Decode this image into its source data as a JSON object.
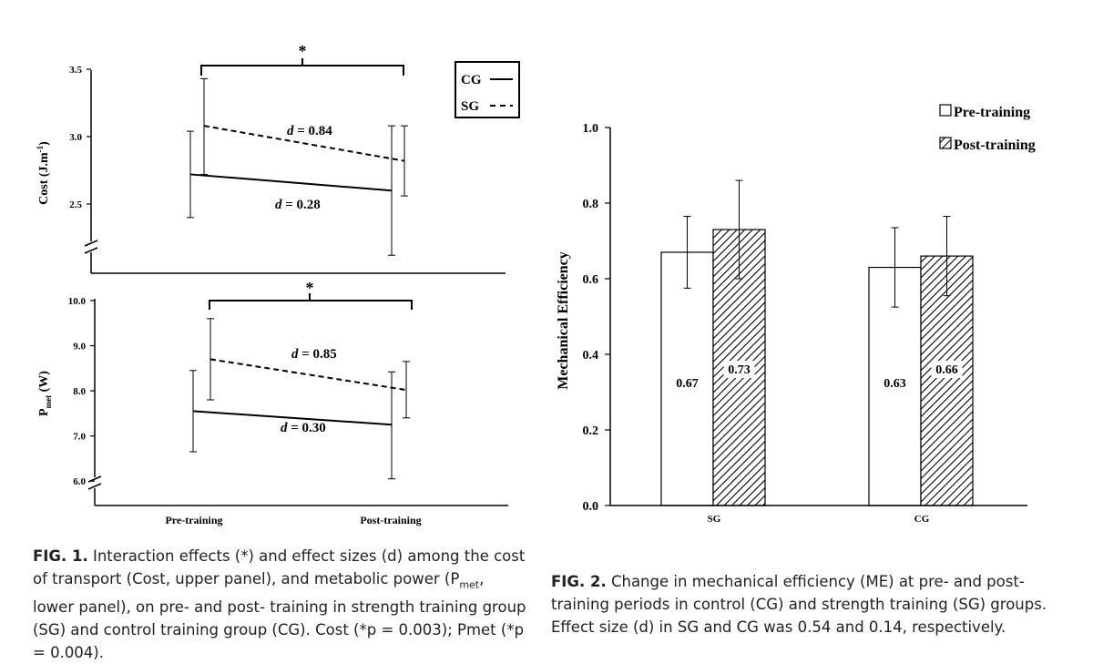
{
  "fig1": {
    "upper": {
      "ylabel": "Cost (J.m",
      "ylabel_sup": "-1",
      "ylabel_end": ")",
      "yticks": [
        "3.5",
        "3.0",
        "2.5"
      ],
      "ylim": [
        2.0,
        3.5
      ],
      "significance": "*",
      "legend": [
        {
          "label": "CG",
          "style": "solid"
        },
        {
          "label": "SG",
          "style": "dashed"
        }
      ],
      "effect_labels": [
        {
          "d_prefix": "d",
          "text": " = 0.84"
        },
        {
          "d_prefix": "d",
          "text": " = 0.28"
        }
      ]
    },
    "lower": {
      "ylabel": "P",
      "ylabel_sub": "met",
      "ylabel_end": " (W)",
      "yticks": [
        "10.0",
        "9.0",
        "8.0",
        "7.0",
        "6.0"
      ],
      "ylim": [
        5.6,
        10.0
      ],
      "significance": "*",
      "effect_labels": [
        {
          "d_prefix": "d",
          "text": " = 0.85"
        },
        {
          "d_prefix": "d",
          "text": " = 0.30"
        }
      ]
    },
    "xticks": [
      "Pre-training",
      "Post-training"
    ]
  },
  "fig2": {
    "ylabel": "Mechanical Efficiency",
    "yticks": [
      "1.0",
      "0.8",
      "0.6",
      "0.4",
      "0.2",
      "0.0"
    ],
    "categories": [
      "SG",
      "CG"
    ],
    "legend": [
      {
        "label": "Pre-training",
        "fill": "white"
      },
      {
        "label": "Post-training",
        "fill": "hatched"
      }
    ]
  },
  "chart_data": [
    {
      "type": "line",
      "x": [
        "Pre-training",
        "Post-training"
      ],
      "ylabel": "Cost (J.m-1)",
      "ylim": [
        2.0,
        3.5
      ],
      "series": [
        {
          "name": "CG",
          "values": [
            2.72,
            2.6
          ],
          "error_low": [
            2.4,
            2.12
          ],
          "error_high": [
            3.04,
            3.08
          ],
          "line": "solid"
        },
        {
          "name": "SG",
          "values": [
            3.08,
            2.82
          ],
          "error_low": [
            2.72,
            2.56
          ],
          "error_high": [
            3.43,
            3.08
          ],
          "line": "dashed"
        }
      ],
      "annotations": [
        "*",
        "d = 0.84",
        "d = 0.28"
      ]
    },
    {
      "type": "line",
      "x": [
        "Pre-training",
        "Post-training"
      ],
      "ylabel": "Pmet (W)",
      "ylim": [
        5.6,
        10.0
      ],
      "series": [
        {
          "name": "CG",
          "values": [
            7.55,
            7.25
          ],
          "error_low": [
            6.65,
            6.05
          ],
          "error_high": [
            8.45,
            8.42
          ],
          "line": "solid"
        },
        {
          "name": "SG",
          "values": [
            8.7,
            8.02
          ],
          "error_low": [
            7.8,
            7.4
          ],
          "error_high": [
            9.6,
            8.65
          ],
          "line": "dashed"
        }
      ],
      "annotations": [
        "*",
        "d = 0.85",
        "d = 0.30"
      ]
    },
    {
      "type": "bar",
      "categories": [
        "SG",
        "CG"
      ],
      "ylabel": "Mechanical Efficiency",
      "ylim": [
        0.0,
        1.0
      ],
      "series": [
        {
          "name": "Pre-training",
          "values": [
            0.67,
            0.63
          ],
          "error": [
            0.095,
            0.105
          ],
          "value_labels": [
            "0.67",
            "0.63"
          ]
        },
        {
          "name": "Post-training",
          "values": [
            0.73,
            0.66
          ],
          "error": [
            0.13,
            0.105
          ],
          "value_labels": [
            "0.73",
            "0.66"
          ]
        }
      ]
    }
  ],
  "captions": {
    "fig1_label": "FIG. 1.",
    "fig1_text": " Interaction effects (*) and effect sizes (d) among the cost of transport (Cost, upper panel), and metabolic power (P",
    "fig1_sub": "met",
    "fig1_text2": ", lower panel), on pre- and post- training in strength training group (SG) and control training group (CG). Cost (*p = 0.003); Pmet (*p = 0.004).",
    "fig2_label": "FIG. 2.",
    "fig2_text": " Change in mechanical efficiency (ME) at pre- and post-training periods in control (CG) and strength training (SG) groups. Effect size (d) in SG and CG was 0.54 and 0.14, respectively."
  }
}
